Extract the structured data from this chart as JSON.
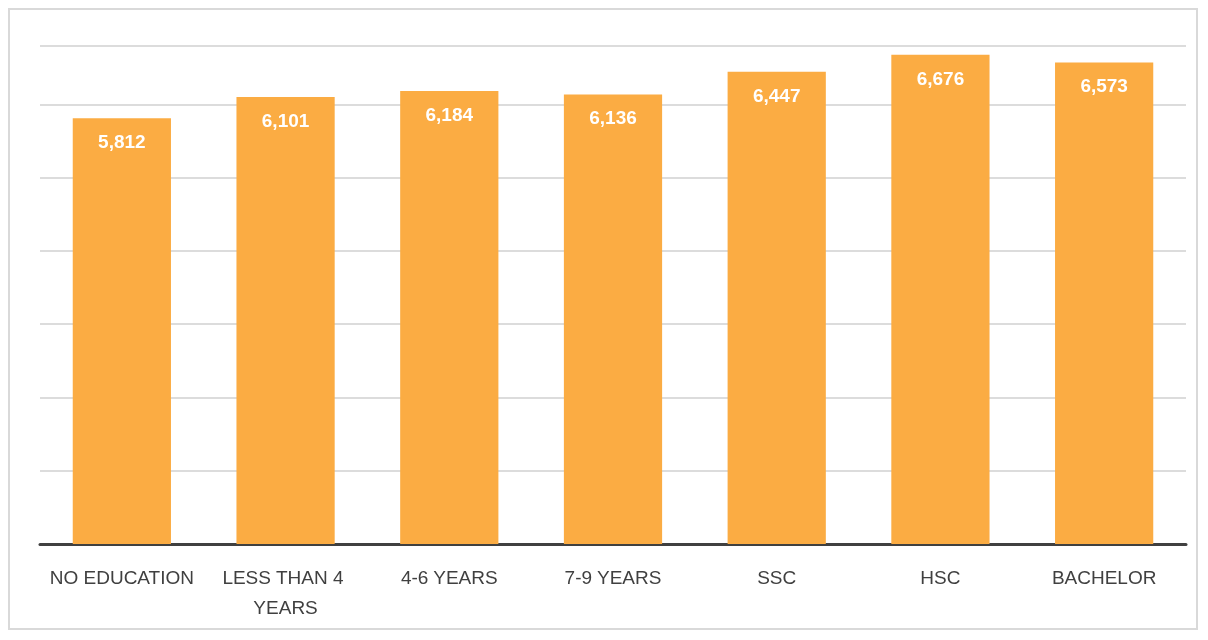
{
  "chart_data": {
    "type": "bar",
    "categories": [
      "NO EDUCATION",
      "LESS THAN 4 YEARS",
      "4-6 YEARS",
      "7-9 YEARS",
      "SSC",
      "HSC",
      "BACHELOR"
    ],
    "values": [
      5812,
      6101,
      6184,
      6136,
      6447,
      6676,
      6573
    ],
    "value_labels": [
      "5,812",
      "6,101",
      "6,184",
      "6,136",
      "6,447",
      "6,676",
      "6,573"
    ],
    "color": "#fbac43",
    "grid": "y",
    "tick_labels": "x"
  }
}
